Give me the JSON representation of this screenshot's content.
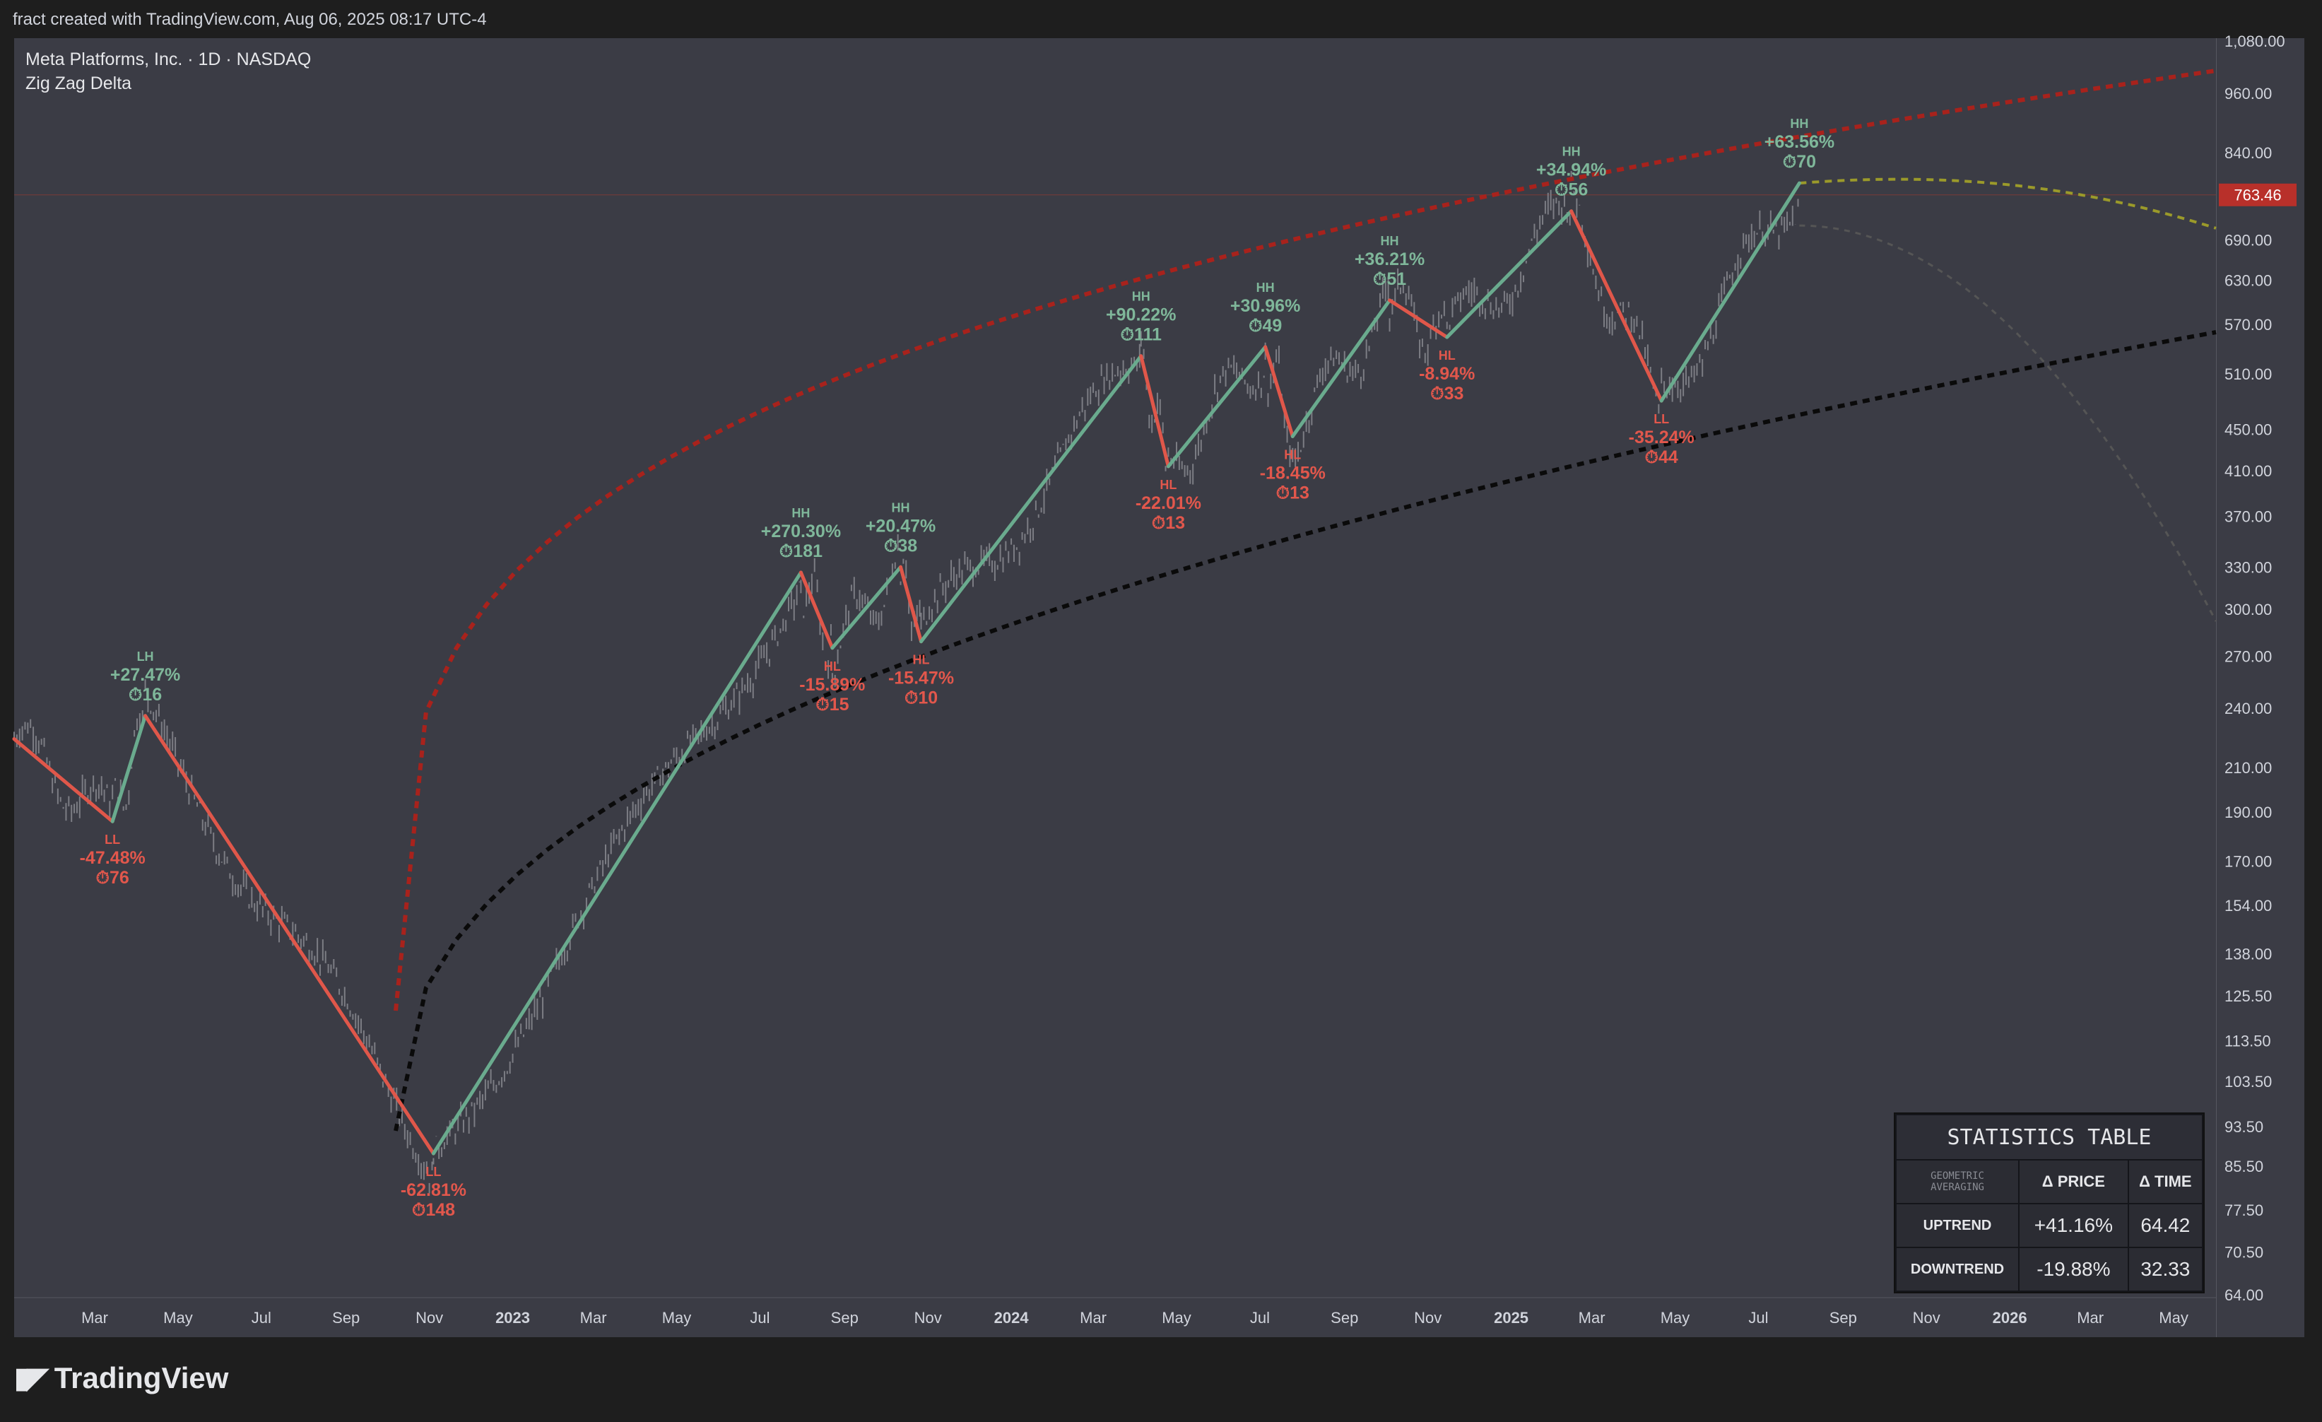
{
  "header": {
    "caption": "fract created with TradingView.com, Aug 06, 2025 08:17 UTC-4"
  },
  "chart": {
    "symbol_line": "Meta Platforms, Inc. · 1D · NASDAQ",
    "indicator_line": "Zig Zag Delta",
    "last_price_label": "763.46"
  },
  "footer": {
    "brand": "TradingView"
  },
  "stats_table": {
    "title": "STATISTICS TABLE",
    "corner_line1": "GEOMETRIC",
    "corner_line2": "AVERAGING",
    "col_price": "Δ PRICE",
    "col_time": "Δ TIME",
    "rows": [
      {
        "label": "UPTREND",
        "price": "+41.16%",
        "time": "64.42"
      },
      {
        "label": "DOWNTREND",
        "price": "-19.88%",
        "time": "32.33"
      }
    ]
  },
  "colors": {
    "up": "#6aab8e",
    "down": "#e0574a",
    "up_label": "#7fb79a",
    "down_label": "#e2574c",
    "upper_curve": "#a8221c",
    "lower_curve": "#0a0a0a",
    "projection": "#9b9a2a",
    "price_tag": "#b8302a"
  },
  "chart_data": {
    "type": "line",
    "title": "Meta Platforms, Inc. · 1D · NASDAQ",
    "y_scale": "log",
    "y_ticks": [
      "1,080.00",
      "960.00",
      "840.00",
      "690.00",
      "630.00",
      "570.00",
      "510.00",
      "450.00",
      "410.00",
      "370.00",
      "330.00",
      "300.00",
      "270.00",
      "240.00",
      "210.00",
      "190.00",
      "170.00",
      "154.00",
      "138.00",
      "125.50",
      "113.50",
      "103.50",
      "93.50",
      "85.50",
      "77.50",
      "70.50",
      "64.00"
    ],
    "x_ticks": [
      "Mar",
      "May",
      "Jul",
      "Sep",
      "Nov",
      "2023",
      "Mar",
      "May",
      "Jul",
      "Sep",
      "Nov",
      "2024",
      "Mar",
      "May",
      "Jul",
      "Sep",
      "Nov",
      "2025",
      "Mar",
      "May",
      "Jul",
      "Sep",
      "Nov",
      "2026",
      "Mar",
      "May"
    ],
    "x_tick_dates": [
      "2022-03-01",
      "2022-05-01",
      "2022-07-01",
      "2022-09-01",
      "2022-11-01",
      "2023-01-01",
      "2023-03-01",
      "2023-05-01",
      "2023-07-01",
      "2023-09-01",
      "2023-11-01",
      "2024-01-01",
      "2024-03-01",
      "2024-05-01",
      "2024-07-01",
      "2024-09-01",
      "2024-11-01",
      "2025-01-01",
      "2025-03-01",
      "2025-05-01",
      "2025-07-01",
      "2025-09-01",
      "2025-11-01",
      "2026-01-01",
      "2026-03-01",
      "2026-05-01"
    ],
    "x_range": [
      "2022-01-01",
      "2026-06-01"
    ],
    "y_range": [
      64,
      1080
    ],
    "last_price": 763.46,
    "zigzag": [
      {
        "date": "2022-01-01",
        "price": 224
      },
      {
        "date": "2022-03-14",
        "price": 186,
        "tag": "LL",
        "pct": "-47.48%",
        "bars": "76",
        "kind": "down"
      },
      {
        "date": "2022-04-07",
        "price": 236,
        "tag": "LH",
        "pct": "+27.47%",
        "bars": "16",
        "kind": "up"
      },
      {
        "date": "2022-11-04",
        "price": 88,
        "tag": "LL",
        "pct": "-62.81%",
        "bars": "148",
        "kind": "down"
      },
      {
        "date": "2023-07-31",
        "price": 326,
        "tag": "HH",
        "pct": "+270.30%",
        "bars": "181",
        "kind": "up"
      },
      {
        "date": "2023-08-23",
        "price": 275,
        "tag": "HL",
        "pct": "-15.89%",
        "bars": "15",
        "kind": "down"
      },
      {
        "date": "2023-10-12",
        "price": 330,
        "tag": "HH",
        "pct": "+20.47%",
        "bars": "38",
        "kind": "up"
      },
      {
        "date": "2023-10-27",
        "price": 279,
        "tag": "HL",
        "pct": "-15.47%",
        "bars": "10",
        "kind": "down"
      },
      {
        "date": "2024-04-05",
        "price": 531,
        "tag": "HH",
        "pct": "+90.22%",
        "bars": "111",
        "kind": "up"
      },
      {
        "date": "2024-04-25",
        "price": 414,
        "tag": "HL",
        "pct": "-22.01%",
        "bars": "13",
        "kind": "down"
      },
      {
        "date": "2024-07-05",
        "price": 542,
        "tag": "HH",
        "pct": "+30.96%",
        "bars": "49",
        "kind": "up"
      },
      {
        "date": "2024-07-25",
        "price": 443,
        "tag": "HL",
        "pct": "-18.45%",
        "bars": "13",
        "kind": "down"
      },
      {
        "date": "2024-10-04",
        "price": 602,
        "tag": "HH",
        "pct": "+36.21%",
        "bars": "51",
        "kind": "up"
      },
      {
        "date": "2024-11-15",
        "price": 554,
        "tag": "HL",
        "pct": "-8.94%",
        "bars": "33",
        "kind": "down"
      },
      {
        "date": "2025-02-14",
        "price": 736,
        "tag": "HH",
        "pct": "+34.94%",
        "bars": "56",
        "kind": "up"
      },
      {
        "date": "2025-04-21",
        "price": 480,
        "tag": "LL",
        "pct": "-35.24%",
        "bars": "44",
        "kind": "down"
      },
      {
        "date": "2025-07-31",
        "price": 784,
        "tag": "HH",
        "pct": "+63.56%",
        "bars": "70",
        "kind": "up"
      }
    ]
  }
}
